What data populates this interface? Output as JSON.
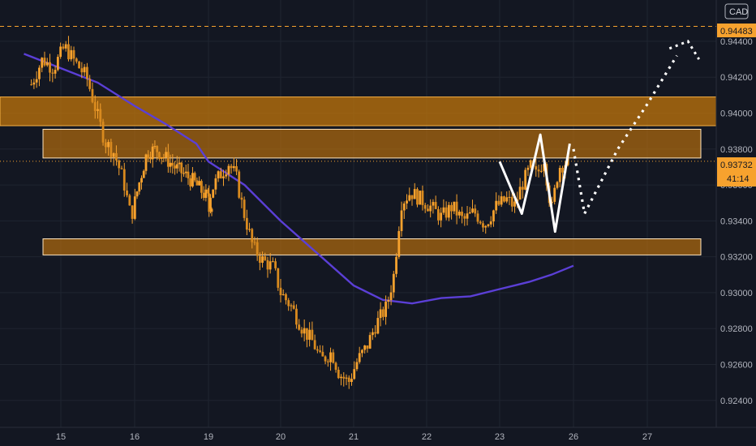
{
  "currency_badge": "CAD",
  "chart_data": {
    "type": "candlestick",
    "title": "",
    "xlabel": "",
    "ylabel": "",
    "ylim": [
      0.9225,
      0.9463
    ],
    "y_ticks": [
      "0.94400",
      "0.94200",
      "0.94000",
      "0.93800",
      "0.93600",
      "0.93400",
      "0.93200",
      "0.93000",
      "0.92800",
      "0.92600",
      "0.92400"
    ],
    "x_ticks": [
      "15",
      "16",
      "19",
      "20",
      "21",
      "22",
      "23",
      "26",
      "27"
    ],
    "grid": true,
    "price_labels": {
      "resistance_line": "0.94483",
      "last_price": "0.93732",
      "countdown": "41:14"
    },
    "resistance_level": 0.94483,
    "last_price": 0.93732,
    "zones": [
      {
        "name": "upper-supply-zone",
        "from_day": 15.0,
        "to_day": 27.9,
        "y_low": 0.9393,
        "y_high": 0.9409
      },
      {
        "name": "mid-resistance-zone",
        "from_day": 15.3,
        "to_day": 26.6,
        "y_low": 0.9375,
        "y_high": 0.9391
      },
      {
        "name": "lower-support-zone",
        "from_day": 15.3,
        "to_day": 26.6,
        "y_low": 0.9321,
        "y_high": 0.933
      }
    ],
    "price_path": [
      [
        14.6,
        0.9416
      ],
      [
        14.75,
        0.943
      ],
      [
        14.9,
        0.9425
      ],
      [
        15.05,
        0.9437
      ],
      [
        15.2,
        0.9428
      ],
      [
        15.35,
        0.942
      ],
      [
        15.5,
        0.9398
      ],
      [
        15.6,
        0.9384
      ],
      [
        15.72,
        0.9378
      ],
      [
        15.85,
        0.9362
      ],
      [
        15.95,
        0.9342
      ],
      [
        16.05,
        0.9358
      ],
      [
        16.2,
        0.9378
      ],
      [
        16.35,
        0.938
      ],
      [
        16.5,
        0.9375
      ],
      [
        16.65,
        0.937
      ],
      [
        16.8,
        0.9366
      ],
      [
        16.95,
        0.9362
      ],
      [
        17.1,
        0.9356
      ],
      [
        17.2,
        0.9352
      ],
      [
        18.95,
        0.9345
      ],
      [
        19.05,
        0.9358
      ],
      [
        19.15,
        0.9365
      ],
      [
        19.28,
        0.9372
      ],
      [
        19.38,
        0.9365
      ],
      [
        19.48,
        0.9346
      ],
      [
        19.62,
        0.9325
      ],
      [
        19.75,
        0.9318
      ],
      [
        19.9,
        0.9314
      ],
      [
        20.0,
        0.93
      ],
      [
        20.15,
        0.9292
      ],
      [
        20.3,
        0.928
      ],
      [
        20.45,
        0.9272
      ],
      [
        20.55,
        0.9262
      ],
      [
        20.7,
        0.9267
      ],
      [
        20.8,
        0.9255
      ],
      [
        20.93,
        0.925
      ],
      [
        21.05,
        0.9262
      ],
      [
        21.18,
        0.927
      ],
      [
        21.3,
        0.9282
      ],
      [
        21.45,
        0.9292
      ],
      [
        21.55,
        0.931
      ],
      [
        21.65,
        0.935
      ],
      [
        21.78,
        0.9356
      ],
      [
        21.92,
        0.9352
      ],
      [
        22.05,
        0.9348
      ],
      [
        22.2,
        0.9342
      ],
      [
        22.35,
        0.9348
      ],
      [
        22.5,
        0.934
      ],
      [
        22.65,
        0.9345
      ],
      [
        22.8,
        0.9338
      ],
      [
        22.95,
        0.9348
      ],
      [
        23.1,
        0.9352
      ],
      [
        23.2,
        0.9348
      ],
      [
        23.3,
        0.936
      ],
      [
        23.42,
        0.937
      ],
      [
        23.5,
        0.9365
      ],
      [
        23.6,
        0.9375
      ],
      [
        23.7,
        0.9345
      ],
      [
        23.8,
        0.937
      ],
      [
        23.95,
        0.9374
      ]
    ],
    "moving_average": [
      [
        14.5,
        0.9433
      ],
      [
        15.0,
        0.9425
      ],
      [
        15.5,
        0.9417
      ],
      [
        16.0,
        0.9404
      ],
      [
        16.5,
        0.9394
      ],
      [
        17.0,
        0.9383
      ],
      [
        19.0,
        0.9373
      ],
      [
        19.5,
        0.936
      ],
      [
        20.0,
        0.934
      ],
      [
        20.5,
        0.9322
      ],
      [
        21.0,
        0.9304
      ],
      [
        21.4,
        0.9296
      ],
      [
        21.8,
        0.9294
      ],
      [
        22.2,
        0.9297
      ],
      [
        22.6,
        0.9298
      ],
      [
        23.0,
        0.9302
      ],
      [
        23.4,
        0.9306
      ],
      [
        23.7,
        0.931
      ],
      [
        24.0,
        0.9315
      ]
    ],
    "pattern_drawing": [
      [
        23.0,
        0.9373
      ],
      [
        23.3,
        0.9344
      ],
      [
        23.55,
        0.9388
      ],
      [
        23.75,
        0.9334
      ],
      [
        23.95,
        0.9383
      ]
    ],
    "projection": [
      [
        24.0,
        0.938
      ],
      [
        24.15,
        0.9344
      ],
      [
        24.6,
        0.938
      ],
      [
        25.0,
        0.9405
      ],
      [
        25.4,
        0.9432
      ],
      [
        25.55,
        0.944
      ],
      [
        25.7,
        0.943
      ]
    ],
    "colors": {
      "background": "#131722",
      "candle": "#f7a22e",
      "moving_average": "#5b3fd6",
      "zone_fill": "#c8780a",
      "zone_border": "#f8b144",
      "resistance_line": "#f7a22e",
      "pattern_drawing": "#ffffff",
      "projection": "#ffffff",
      "price_tag": "#f7a22e",
      "axis_text": "#b2b5be",
      "grid": "#1f2430"
    }
  }
}
